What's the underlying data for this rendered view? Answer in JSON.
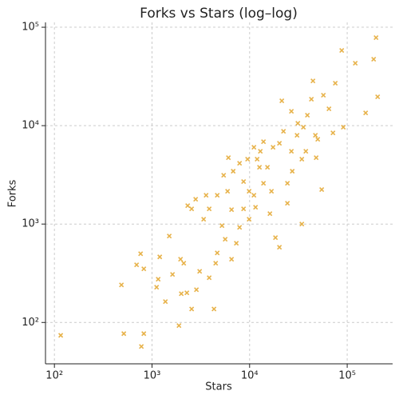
{
  "chart_data": {
    "type": "scatter",
    "title": "Forks vs Stars (log–log)",
    "x_label": "Stars",
    "y_label": "Forks",
    "x_scale": "log",
    "y_scale": "log",
    "grid": true,
    "marker": "x",
    "xlim": [
      81,
      292000
    ],
    "ylim": [
      38,
      112000
    ],
    "xticks": [
      {
        "value": 100,
        "label": "10²"
      },
      {
        "value": 1000,
        "label": "10³"
      },
      {
        "value": 10000,
        "label": "10⁴"
      },
      {
        "value": 100000,
        "label": "10⁵"
      }
    ],
    "yticks": [
      {
        "value": 100,
        "label": "10²"
      },
      {
        "value": 1000,
        "label": "10³"
      },
      {
        "value": 10000,
        "label": "10⁴"
      },
      {
        "value": 100000,
        "label": "10⁵"
      }
    ],
    "series": [
      {
        "color": "#e3a52a",
        "x": [
          116,
          514,
          824,
          778,
          1888,
          486,
          695,
          764,
          824,
          1200,
          1503,
          1371,
          1995,
          2547,
          4315,
          2275,
          2851,
          3855,
          1622,
          2115,
          2320,
          2547,
          3581,
          3855,
          4660,
          5212,
          6531,
          5946,
          6790,
          6063,
          7889,
          8670,
          9885,
          11070,
          12880,
          13870,
          15240,
          16750,
          22230,
          26800,
          24400,
          30620,
          34280,
          39080,
          44570,
          49900,
          54800,
          65000,
          75510,
          87880,
          121000,
          154500,
          205000,
          197400,
          186600,
          91200,
          71450,
          21380,
          20210,
          12620,
          11500,
          8670,
          7889,
          7310,
          6531,
          4490,
          3076,
          1960,
          1157,
          1114,
          18400,
          20210,
          34280,
          24400,
          27350,
          37670,
          47210,
          35560,
          57010,
          42950,
          11070,
          17380,
          9530,
          5420,
          4660,
          2800,
          3380,
          5620,
          13870,
          16140,
          9885,
          11940,
          26800,
          31200,
          48080
        ],
        "values": [
          74,
          77,
          77,
          57,
          93,
          241,
          385,
          500,
          351,
          464,
          755,
          163,
          196,
          137,
          137,
          200,
          215,
          285,
          308,
          400,
          1538,
          1426,
          1963,
          1426,
          509,
          964,
          1400,
          2153,
          3443,
          4731,
          4150,
          2700,
          1119,
          1963,
          5495,
          6871,
          3776,
          2153,
          8770,
          5495,
          2600,
          7980,
          4560,
          12760,
          28500,
          7275,
          2240,
          14830,
          26960,
          58070,
          43050,
          13490,
          19640,
          78340,
          47320,
          9640,
          8450,
          17870,
          6620,
          3776,
          1483,
          1426,
          927,
          638,
          439,
          400,
          331,
          439,
          275,
          228,
          728,
          581,
          1000,
          1626,
          3443,
          5495,
          7980,
          9640,
          20370,
          18550,
          6030,
          6030,
          4560,
          3134,
          1963,
          1786,
          1119,
          701,
          2600,
          1277,
          2153,
          4560,
          14000,
          10570,
          4730
        ]
      }
    ]
  }
}
